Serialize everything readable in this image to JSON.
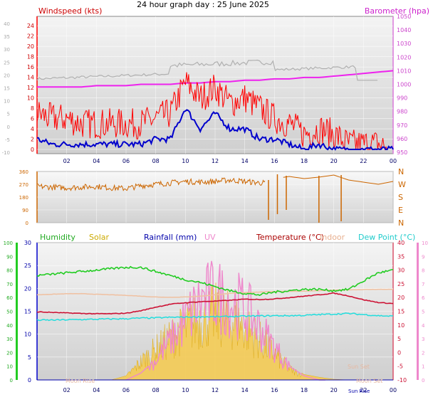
{
  "title": "24 hour graph day : 25 June 2025",
  "colors": {
    "wind_avg": "#0000cc",
    "wind_gust": "#ff0000",
    "baro": "#ee22ee",
    "baro_trend": "#b0b0b0",
    "winddir": "#cc6600",
    "humidity": "#22cc22",
    "solar": "#e8b800",
    "rain": "#0000aa",
    "uv": "#ee88cc",
    "temp": "#cc1133",
    "indoor": "#f0c0a0",
    "dew": "#22dddd"
  },
  "panel1": {
    "left_label": "Windspeed (kts)",
    "right_label": "Barometer (hpa)",
    "left_ticks": [
      "24",
      "22",
      "20",
      "18",
      "16",
      "14",
      "12",
      "10",
      "8",
      "6",
      "4",
      "2",
      "0"
    ],
    "right_ticks": [
      "1050",
      "1040",
      "1030",
      "1020",
      "1010",
      "1000",
      "990",
      "980",
      "970",
      "960",
      "950"
    ],
    "outer_ticks": [
      "40",
      "35",
      "30",
      "25",
      "20",
      "15",
      "10",
      "5",
      "0",
      "-5",
      "-10"
    ]
  },
  "panel2": {
    "left_ticks": [
      "360",
      "270",
      "180",
      "90",
      "0"
    ],
    "right_ticks": [
      "N",
      "W",
      "S",
      "E",
      "N"
    ]
  },
  "panel3": {
    "legend": {
      "humidity": "Humidity",
      "solar": "Solar",
      "rain": "Rainfall (mm)",
      "uv": "UV",
      "temp": "Temperature (°C)",
      "indoor": "Indoor",
      "dew": "Dew Point (°C)"
    },
    "hum_ticks": [
      "100",
      "90",
      "80",
      "70",
      "60",
      "50",
      "40",
      "30",
      "20",
      "10",
      "0"
    ],
    "rain_ticks": [
      "30",
      "25",
      "20",
      "15",
      "10",
      "5",
      "0"
    ],
    "temp_ticks": [
      "40",
      "35",
      "30",
      "25",
      "20",
      "15",
      "10",
      "5",
      "0",
      "-5",
      "-10"
    ],
    "uv_ticks": [
      "10",
      "9",
      "8",
      "7",
      "6",
      "5",
      "4",
      "3",
      "2",
      "1",
      "0"
    ],
    "annotations": {
      "moon_rise": "Moon Rise",
      "sun_set": "Sun Set",
      "moon_set": "Moon Set",
      "sun_rise": "Sun Rise"
    }
  },
  "x_ticks": [
    "02",
    "04",
    "06",
    "08",
    "10",
    "12",
    "14",
    "16",
    "18",
    "20",
    "22",
    "00"
  ],
  "chart_data": [
    {
      "type": "line",
      "title": "24 hour graph day : 25 June 2025",
      "x_hours": [
        0,
        1,
        2,
        3,
        4,
        5,
        6,
        7,
        8,
        9,
        10,
        11,
        12,
        13,
        14,
        15,
        16,
        17,
        18,
        19,
        20,
        21,
        22,
        23,
        24
      ],
      "series": [
        {
          "name": "Windspeed (kts)",
          "unit": "kts",
          "values": [
            2,
            1,
            1,
            1,
            1,
            1,
            1,
            1,
            2,
            2,
            8,
            4,
            7,
            4,
            4,
            2,
            2,
            1,
            0,
            1,
            0,
            0,
            0,
            0,
            0
          ]
        },
        {
          "name": "Barometer (hpa)",
          "unit": "hpa",
          "values": [
            998,
            998,
            998,
            998,
            999,
            999,
            999,
            1000,
            1000,
            1000,
            1001,
            1001,
            1002,
            1002,
            1003,
            1003,
            1004,
            1004,
            1005,
            1005,
            1006,
            1007,
            1008,
            1009,
            1010
          ]
        }
      ],
      "gusts_kts": [
        7,
        6,
        6,
        5,
        5,
        5,
        5,
        5,
        6,
        7,
        13,
        10,
        12,
        9,
        10,
        8,
        6,
        5,
        3,
        4,
        3,
        1,
        1,
        1,
        0
      ],
      "ylim_wind": [
        0,
        25
      ],
      "ylim_baro": [
        950,
        1050
      ],
      "ylim_outer": [
        -10,
        40
      ]
    },
    {
      "type": "line",
      "x_hours": [
        0,
        1,
        2,
        3,
        4,
        5,
        6,
        7,
        8,
        9,
        10,
        11,
        12,
        13,
        14,
        15,
        15.5,
        16,
        17,
        18,
        19,
        20,
        21,
        22,
        23,
        24
      ],
      "series": [
        {
          "name": "Wind direction",
          "unit": "deg",
          "values": [
            255,
            250,
            245,
            250,
            255,
            245,
            240,
            260,
            270,
            280,
            290,
            285,
            290,
            300,
            290,
            280,
            280,
            310,
            325,
            310,
            320,
            335,
            300,
            285,
            270,
            290
          ]
        }
      ],
      "ylim": [
        0,
        360
      ]
    },
    {
      "type": "line",
      "x_hours": [
        0,
        1,
        2,
        3,
        4,
        5,
        6,
        7,
        8,
        9,
        10,
        11,
        12,
        13,
        14,
        15,
        16,
        17,
        18,
        19,
        20,
        21,
        22,
        23,
        24
      ],
      "series": [
        {
          "name": "Humidity",
          "unit": "%",
          "values": [
            76,
            77,
            78,
            79,
            80,
            81,
            82,
            82,
            79,
            76,
            73,
            71,
            68,
            65,
            63,
            62,
            64,
            65,
            66,
            66,
            65,
            66,
            72,
            78,
            80
          ]
        },
        {
          "name": "Solar",
          "unit": "W/m2",
          "values": [
            0,
            0,
            0,
            0,
            0,
            0,
            30,
            180,
            300,
            420,
            520,
            600,
            650,
            600,
            520,
            400,
            260,
            110,
            40,
            20,
            5,
            0,
            0,
            0,
            0
          ]
        },
        {
          "name": "Rainfall (mm)",
          "unit": "mm",
          "values": [
            0,
            0,
            0,
            0,
            0,
            0,
            0,
            0,
            0,
            0,
            0,
            0,
            0,
            0,
            0,
            0,
            0,
            0,
            0,
            0,
            0,
            0,
            0,
            0,
            0
          ]
        },
        {
          "name": "UV",
          "unit": "index",
          "values": [
            0,
            0,
            0,
            0,
            0,
            0,
            0,
            0.5,
            1.5,
            3,
            4.5,
            6,
            6.5,
            6,
            5.5,
            4,
            2.5,
            1,
            0.3,
            0,
            0,
            0,
            0,
            0,
            0
          ]
        },
        {
          "name": "Temperature (°C)",
          "unit": "°C",
          "values": [
            14.8,
            14.6,
            14.4,
            14.2,
            14.1,
            14.1,
            14.3,
            15.2,
            16.5,
            17.6,
            18.1,
            18.5,
            18.7,
            19.0,
            19.4,
            19.3,
            19.5,
            20.0,
            20.5,
            21.0,
            21.6,
            20.6,
            19.2,
            18.2,
            17.8
          ]
        },
        {
          "name": "Indoor",
          "unit": "°C",
          "values": [
            21.0,
            21.2,
            21.4,
            21.4,
            21.2,
            21.0,
            20.8,
            20.5,
            20.2,
            20.1,
            20.2,
            20.5,
            21.0,
            21.5,
            21.8,
            22.0,
            22.2,
            22.3,
            22.3,
            22.5,
            22.7,
            22.8,
            22.9,
            23.0,
            23.0
          ]
        },
        {
          "name": "Dew Point (°C)",
          "unit": "°C",
          "values": [
            11.8,
            11.8,
            11.9,
            12.0,
            12.1,
            12.2,
            12.3,
            12.5,
            12.6,
            12.8,
            12.9,
            13.0,
            13.0,
            13.1,
            13.2,
            13.3,
            13.4,
            13.4,
            13.5,
            13.8,
            14.0,
            14.2,
            13.8,
            13.4,
            13.2
          ]
        }
      ],
      "ylim_humidity": [
        0,
        100
      ],
      "ylim_rain": [
        0,
        30
      ],
      "ylim_temp": [
        -10,
        40
      ],
      "ylim_uv": [
        0,
        10
      ]
    }
  ]
}
